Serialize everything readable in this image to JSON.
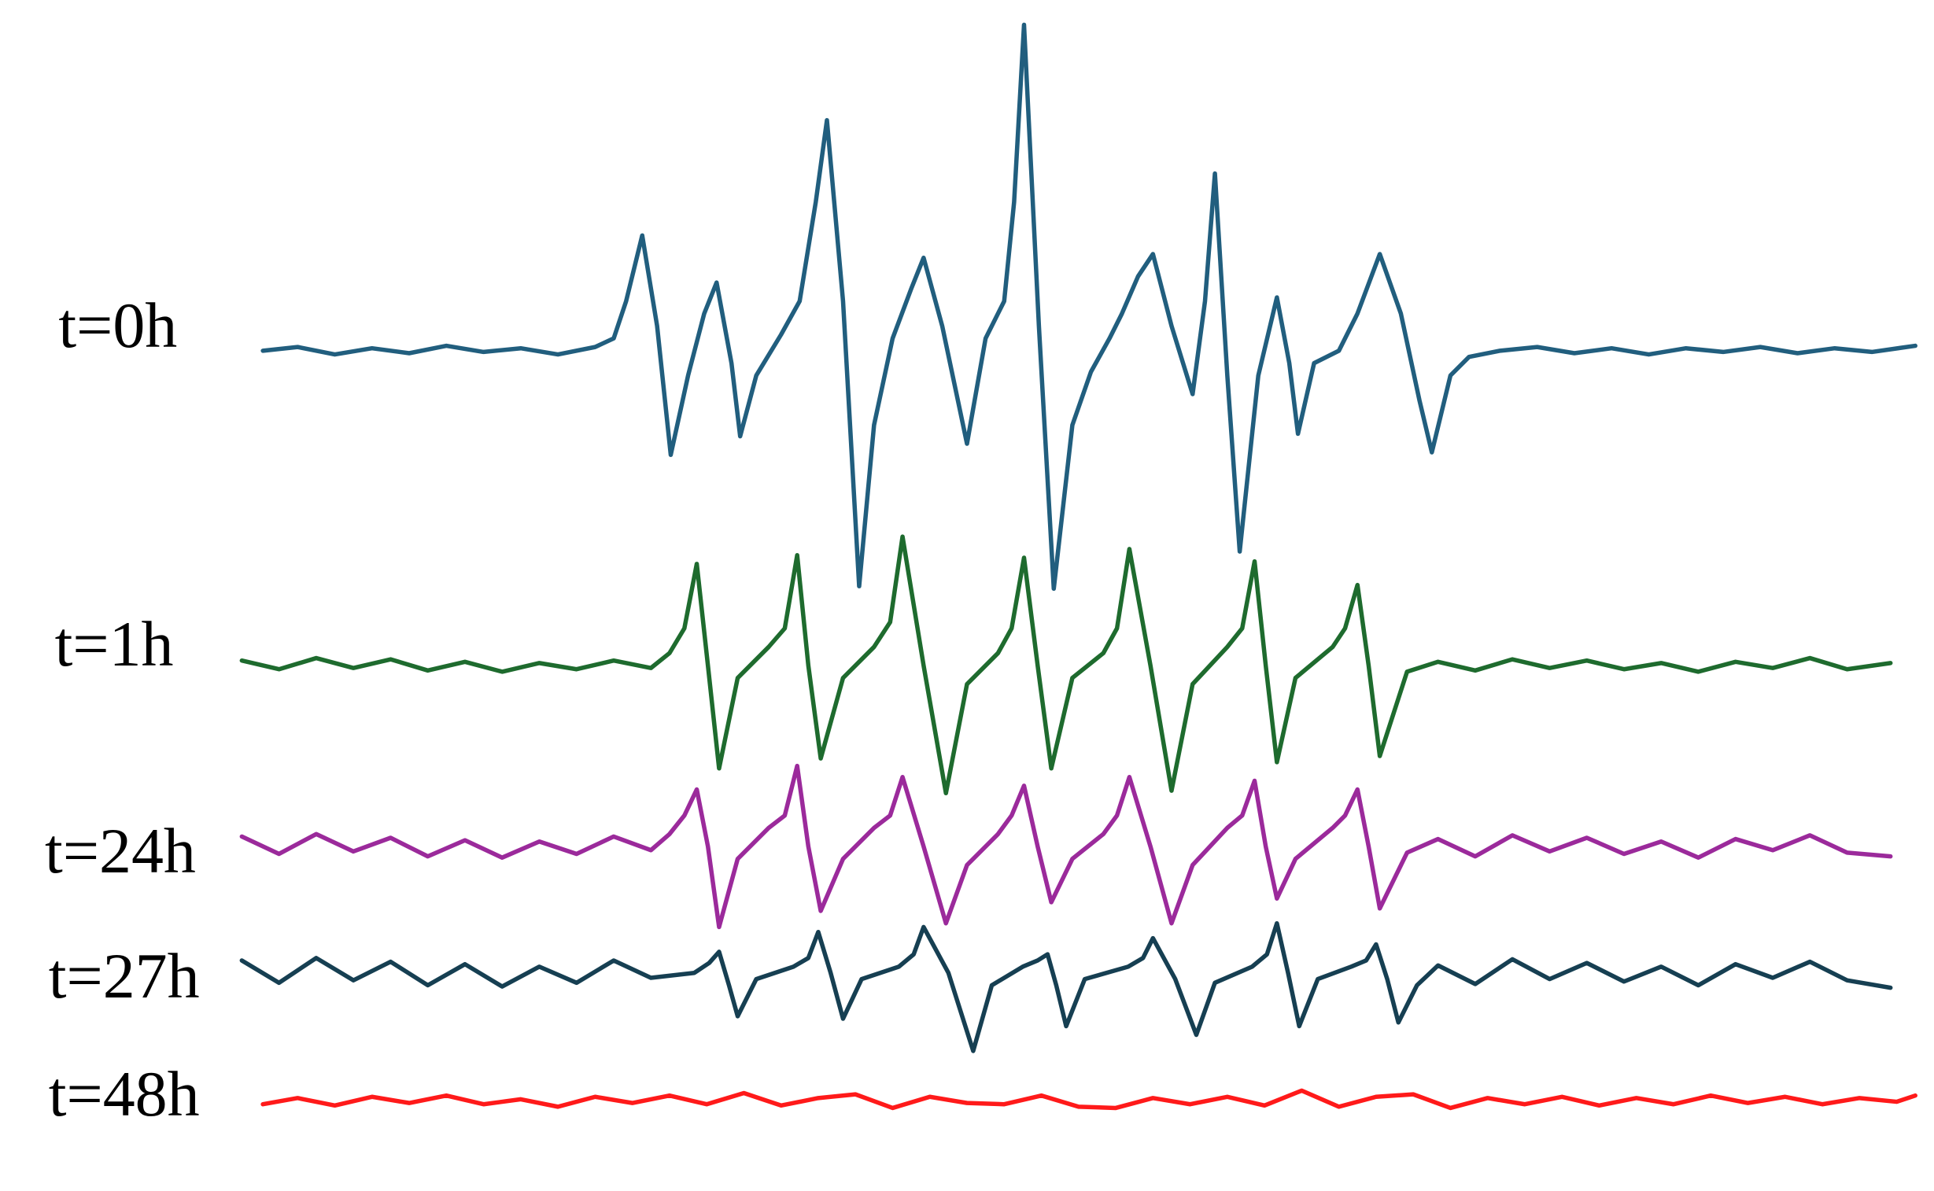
{
  "chart_data": {
    "type": "line",
    "series": [
      {
        "name": "t=0h",
        "color": "#215e7e",
        "x": [
          212,
          240,
          270,
          300,
          330,
          360,
          390,
          420,
          450,
          480,
          495,
          505,
          518,
          530,
          541,
          555,
          568,
          578,
          590,
          597,
          610,
          630,
          645,
          658,
          667,
          680,
          693,
          705,
          720,
          735,
          745,
          760,
          780,
          795,
          810,
          818,
          826,
          838,
          850,
          865,
          880,
          895,
          905,
          918,
          930,
          945,
          962,
          972,
          980,
          990,
          1000,
          1015,
          1030,
          1040,
          1047,
          1060,
          1080,
          1095,
          1113,
          1130,
          1145,
          1155,
          1170,
          1185,
          1210,
          1240,
          1270,
          1300,
          1330,
          1360,
          1390,
          1420,
          1450,
          1480,
          1510,
          1545
        ],
        "values": [
          0,
          3,
          -3,
          2,
          -2,
          4,
          -1,
          2,
          -3,
          3,
          10,
          40,
          93,
          20,
          -84,
          -20,
          30,
          55,
          -10,
          -69,
          -20,
          13,
          40,
          120,
          186,
          40,
          -190,
          -60,
          10,
          50,
          75,
          20,
          -75,
          10,
          40,
          120,
          263,
          20,
          -192,
          -60,
          -17,
          10,
          30,
          60,
          78,
          20,
          -35,
          40,
          143,
          -20,
          -162,
          -20,
          43,
          -10,
          -67,
          -10,
          0,
          30,
          78,
          30,
          -40,
          -82,
          -20,
          -5,
          0,
          3,
          -2,
          2,
          -3,
          2,
          -1,
          3,
          -2,
          2,
          -1,
          4
        ]
      },
      {
        "name": "t=1h",
        "color": "#1e6b2e",
        "x": [
          195,
          225,
          255,
          285,
          315,
          345,
          375,
          405,
          435,
          465,
          495,
          525,
          540,
          552,
          562,
          571,
          580,
          595,
          620,
          633,
          643,
          652,
          662,
          680,
          705,
          718,
          728,
          745,
          763,
          780,
          805,
          816,
          826,
          837,
          848,
          865,
          890,
          901,
          911,
          928,
          945,
          962,
          990,
          1002,
          1012,
          1021,
          1030,
          1045,
          1075,
          1085,
          1095,
          1104,
          1113,
          1135,
          1160,
          1190,
          1220,
          1250,
          1280,
          1310,
          1340,
          1370,
          1400,
          1430,
          1460,
          1490,
          1525
        ],
        "values": [
          4,
          -3,
          6,
          -2,
          5,
          -4,
          3,
          -5,
          2,
          -3,
          4,
          -2,
          10,
          30,
          82,
          0,
          -83,
          -10,
          15,
          30,
          89,
          0,
          -75,
          -10,
          15,
          35,
          104,
          0,
          -103,
          -15,
          10,
          30,
          87,
          0,
          -83,
          -10,
          10,
          30,
          94,
          0,
          -101,
          -15,
          15,
          30,
          84,
          0,
          -78,
          -10,
          15,
          30,
          65,
          0,
          -73,
          -5,
          3,
          -4,
          5,
          -2,
          4,
          -3,
          2,
          -5,
          3,
          -2,
          6,
          -3,
          2
        ]
      },
      {
        "name": "t=24h",
        "color": "#9b2a9b",
        "x": [
          195,
          225,
          255,
          285,
          315,
          345,
          375,
          405,
          435,
          465,
          495,
          525,
          540,
          552,
          562,
          571,
          580,
          595,
          620,
          633,
          643,
          652,
          662,
          680,
          705,
          718,
          728,
          745,
          763,
          780,
          805,
          816,
          826,
          837,
          848,
          865,
          890,
          901,
          911,
          928,
          945,
          962,
          990,
          1002,
          1012,
          1021,
          1030,
          1045,
          1075,
          1085,
          1095,
          1104,
          1113,
          1135,
          1160,
          1190,
          1220,
          1250,
          1280,
          1310,
          1340,
          1370,
          1400,
          1430,
          1460,
          1490,
          1525
        ],
        "values": [
          8,
          -6,
          10,
          -4,
          7,
          -8,
          5,
          -9,
          4,
          -6,
          8,
          -3,
          10,
          25,
          46,
          0,
          -65,
          -10,
          15,
          25,
          65,
          0,
          -52,
          -10,
          15,
          25,
          56,
          0,
          -62,
          -15,
          10,
          25,
          49,
          0,
          -45,
          -10,
          10,
          25,
          56,
          0,
          -62,
          -15,
          15,
          25,
          53,
          0,
          -42,
          -10,
          15,
          25,
          46,
          0,
          -50,
          -5,
          6,
          -8,
          9,
          -4,
          7,
          -6,
          4,
          -9,
          6,
          -3,
          9,
          -5,
          -8
        ]
      },
      {
        "name": "t=27h",
        "color": "#163f52",
        "x": [
          195,
          225,
          255,
          285,
          315,
          345,
          375,
          405,
          435,
          465,
          495,
          525,
          560,
          572,
          580,
          588,
          595,
          610,
          640,
          652,
          660,
          670,
          680,
          695,
          725,
          737,
          745,
          765,
          785,
          800,
          825,
          837,
          845,
          852,
          860,
          875,
          910,
          922,
          930,
          948,
          965,
          980,
          1010,
          1022,
          1030,
          1039,
          1048,
          1063,
          1090,
          1102,
          1110,
          1119,
          1128,
          1143,
          1160,
          1190,
          1220,
          1250,
          1280,
          1310,
          1340,
          1370,
          1400,
          1430,
          1460,
          1490,
          1525
        ],
        "values": [
          10,
          -8,
          12,
          -6,
          9,
          -10,
          7,
          -11,
          5,
          -8,
          10,
          -4,
          0,
          8,
          17,
          -10,
          -35,
          -5,
          5,
          12,
          33,
          0,
          -37,
          -5,
          5,
          15,
          37,
          0,
          -63,
          -10,
          5,
          10,
          15,
          -10,
          -43,
          -5,
          5,
          12,
          28,
          -5,
          -50,
          -8,
          5,
          15,
          40,
          0,
          -43,
          -5,
          5,
          10,
          23,
          -5,
          -40,
          -10,
          6,
          -9,
          11,
          -5,
          8,
          -7,
          5,
          -10,
          7,
          -4,
          9,
          -6,
          -12
        ]
      },
      {
        "name": "t=48h",
        "color": "#ff1a1a",
        "x": [
          212,
          240,
          270,
          300,
          330,
          360,
          390,
          420,
          450,
          480,
          510,
          540,
          570,
          600,
          630,
          660,
          690,
          720,
          750,
          780,
          810,
          840,
          870,
          900,
          930,
          960,
          990,
          1020,
          1050,
          1080,
          1110,
          1140,
          1170,
          1200,
          1230,
          1260,
          1290,
          1320,
          1350,
          1380,
          1410,
          1440,
          1470,
          1500,
          1530,
          1545
        ],
        "values": [
          -3,
          2,
          -4,
          3,
          -2,
          4,
          -3,
          1,
          -5,
          3,
          -2,
          4,
          -3,
          6,
          -4,
          2,
          5,
          -6,
          3,
          -2,
          -3,
          4,
          -5,
          -6,
          2,
          -3,
          3,
          -4,
          8,
          -5,
          3,
          5,
          -6,
          2,
          -3,
          3,
          -4,
          2,
          -3,
          4,
          -2,
          3,
          -3,
          2,
          -1,
          4
        ]
      }
    ]
  }
}
